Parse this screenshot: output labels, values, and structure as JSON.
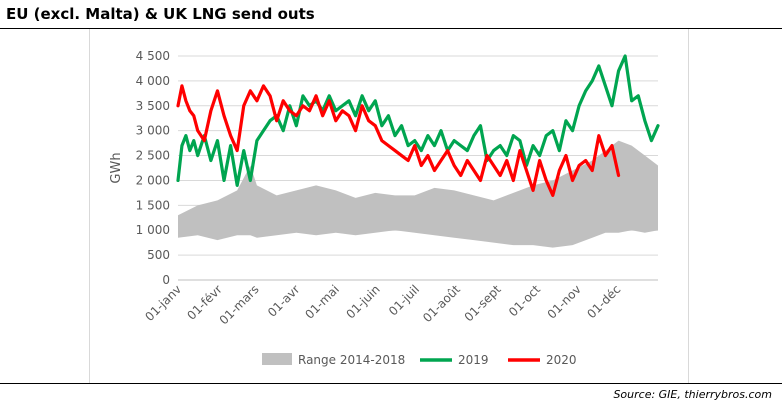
{
  "title": "EU (excl. Malta) & UK LNG send outs",
  "source": "Source: GIE, thierrybros.com",
  "chart_data": {
    "type": "line",
    "title": "EU (excl. Malta) & UK LNG send outs",
    "ylabel": "GWh",
    "xlabel": "",
    "ylim": [
      0,
      4500
    ],
    "yticks": [
      0,
      500,
      1000,
      1500,
      2000,
      2500,
      3000,
      3500,
      4000,
      4500
    ],
    "ytick_labels": [
      "0",
      "500",
      "1 000",
      "1 500",
      "2 000",
      "2 500",
      "3 000",
      "3 500",
      "4 000",
      "4 500"
    ],
    "x_range_days": [
      0,
      365
    ],
    "x_tick_labels": [
      "01-janv",
      "01-févr",
      "01-mars",
      "01-avr",
      "01-mai",
      "01-juin",
      "01-juil",
      "01-août",
      "01-sept",
      "01-oct",
      "01-nov",
      "01-déc"
    ],
    "x_tick_days": [
      0,
      31,
      59,
      90,
      120,
      151,
      181,
      212,
      243,
      273,
      304,
      334
    ],
    "grid": true,
    "legend_position": "bottom",
    "legend": [
      "Range 2014-2018",
      "2019",
      "2020"
    ],
    "colors": {
      "range": "#c0c0c0",
      "y2019": "#00a550",
      "y2020": "#ff0000"
    },
    "range_band": {
      "name": "Range 2014-2018",
      "x": [
        0,
        15,
        30,
        45,
        55,
        60,
        75,
        90,
        105,
        120,
        135,
        150,
        165,
        180,
        195,
        210,
        225,
        240,
        255,
        270,
        285,
        300,
        315,
        325,
        335,
        345,
        355,
        365
      ],
      "low": [
        850,
        900,
        800,
        900,
        900,
        850,
        900,
        950,
        900,
        950,
        900,
        950,
        1000,
        950,
        900,
        850,
        800,
        750,
        700,
        700,
        650,
        700,
        850,
        950,
        950,
        1000,
        950,
        1000
      ],
      "high": [
        1300,
        1500,
        1600,
        1800,
        2300,
        1900,
        1700,
        1800,
        1900,
        1800,
        1650,
        1750,
        1700,
        1700,
        1850,
        1800,
        1700,
        1600,
        1750,
        1900,
        2000,
        2200,
        2400,
        2600,
        2800,
        2700,
        2500,
        2300
      ]
    },
    "series": [
      {
        "name": "2019",
        "x": [
          0,
          3,
          6,
          9,
          12,
          15,
          20,
          25,
          30,
          35,
          40,
          45,
          50,
          55,
          60,
          65,
          70,
          75,
          80,
          85,
          90,
          95,
          100,
          105,
          110,
          115,
          120,
          125,
          130,
          135,
          140,
          145,
          150,
          155,
          160,
          165,
          170,
          175,
          180,
          185,
          190,
          195,
          200,
          205,
          210,
          215,
          220,
          225,
          230,
          235,
          240,
          245,
          250,
          255,
          260,
          265,
          270,
          275,
          280,
          285,
          290,
          295,
          300,
          305,
          310,
          315,
          320,
          325,
          330,
          335,
          340,
          345,
          350,
          355,
          360,
          365
        ],
        "values": [
          2000,
          2700,
          2900,
          2600,
          2800,
          2500,
          2900,
          2400,
          2800,
          2000,
          2700,
          1900,
          2600,
          2000,
          2800,
          3000,
          3200,
          3300,
          3000,
          3500,
          3100,
          3700,
          3500,
          3600,
          3400,
          3700,
          3400,
          3500,
          3600,
          3300,
          3700,
          3400,
          3600,
          3100,
          3300,
          2900,
          3100,
          2700,
          2800,
          2600,
          2900,
          2700,
          3000,
          2600,
          2800,
          2700,
          2600,
          2900,
          3100,
          2400,
          2600,
          2700,
          2500,
          2900,
          2800,
          2300,
          2700,
          2500,
          2900,
          3000,
          2600,
          3200,
          3000,
          3500,
          3800,
          4000,
          4300,
          3900,
          3500,
          4200,
          4500,
          3600,
          3700,
          3200,
          2800,
          3100
        ]
      },
      {
        "name": "2020",
        "x": [
          0,
          3,
          6,
          9,
          12,
          15,
          20,
          25,
          30,
          35,
          40,
          45,
          50,
          55,
          60,
          65,
          70,
          75,
          80,
          85,
          90,
          95,
          100,
          105,
          110,
          115,
          120,
          125,
          130,
          135,
          140,
          145,
          150,
          155,
          160,
          165,
          170,
          175,
          180,
          185,
          190,
          195,
          200,
          205,
          210,
          215,
          220,
          225,
          230,
          235,
          240,
          245,
          250,
          255,
          260,
          265,
          270,
          275,
          280,
          285,
          290,
          295,
          300,
          305,
          310,
          315,
          320,
          325,
          330,
          335
        ],
        "values": [
          3500,
          3900,
          3600,
          3400,
          3300,
          3000,
          2800,
          3400,
          3800,
          3300,
          2900,
          2600,
          3500,
          3800,
          3600,
          3900,
          3700,
          3200,
          3600,
          3400,
          3300,
          3500,
          3400,
          3700,
          3300,
          3600,
          3200,
          3400,
          3300,
          3000,
          3500,
          3200,
          3100,
          2800,
          2700,
          2600,
          2500,
          2400,
          2700,
          2300,
          2500,
          2200,
          2400,
          2600,
          2300,
          2100,
          2400,
          2200,
          2000,
          2500,
          2300,
          2100,
          2400,
          2000,
          2600,
          2200,
          1800,
          2400,
          2000,
          1700,
          2200,
          2500,
          2000,
          2300,
          2400,
          2200,
          2900,
          2500,
          2700,
          2100
        ]
      }
    ]
  }
}
